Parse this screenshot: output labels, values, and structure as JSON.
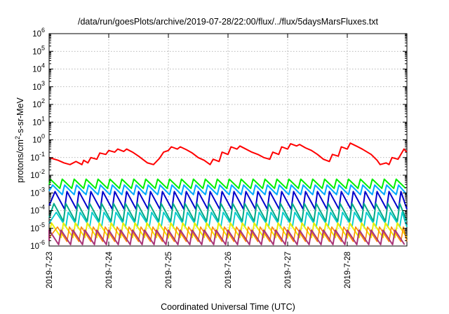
{
  "chart_data": {
    "type": "line",
    "title": "/data/run/goesPlots/archive/2019-07-28/22:00/flux/../flux/5daysMarsFluxes.txt",
    "xlabel": "Coordinated Universal Time (UTC)",
    "ylabel_main": "protons/cm",
    "ylabel_sup": "2",
    "ylabel_rest": "-s-sr-MeV",
    "yscale": "log",
    "ylim_exp": [
      -6,
      6
    ],
    "ytick_exponents": [
      "-6",
      "-5",
      "-4",
      "-3",
      "-2",
      "-1",
      "0",
      "1",
      "2",
      "3",
      "4",
      "5",
      "6"
    ],
    "ytick_base": "10",
    "xlim_days": [
      0,
      6
    ],
    "x_ticks": [
      "2019-7-23",
      "2019-7-24",
      "2019-7-25",
      "2019-7-26",
      "2019-7-27",
      "2019-7-28"
    ],
    "grid": true,
    "series": [
      {
        "color": "#ff0000",
        "width": 2,
        "x": [
          0.0,
          0.15,
          0.25,
          0.35,
          0.45,
          0.55,
          0.58,
          0.65,
          0.7,
          0.8,
          0.85,
          0.95,
          1.0,
          1.1,
          1.15,
          1.25,
          1.3,
          1.4,
          1.5,
          1.65,
          1.75,
          1.85,
          1.92,
          2.0,
          2.05,
          2.15,
          2.2,
          2.3,
          2.4,
          2.5,
          2.6,
          2.7,
          2.75,
          2.85,
          2.9,
          3.0,
          3.05,
          3.15,
          3.2,
          3.3,
          3.4,
          3.5,
          3.6,
          3.7,
          3.75,
          3.85,
          3.9,
          4.0,
          4.05,
          4.15,
          4.2,
          4.3,
          4.4,
          4.5,
          4.6,
          4.7,
          4.75,
          4.85,
          4.9,
          5.0,
          5.05,
          5.15,
          5.25,
          5.4,
          5.5,
          5.55,
          5.65,
          5.7,
          5.75,
          5.85,
          5.95,
          6.0
        ],
        "y": [
          0.1,
          0.07,
          0.05,
          0.04,
          0.06,
          0.04,
          0.07,
          0.05,
          0.1,
          0.08,
          0.18,
          0.15,
          0.25,
          0.2,
          0.3,
          0.22,
          0.3,
          0.2,
          0.12,
          0.05,
          0.04,
          0.09,
          0.2,
          0.25,
          0.4,
          0.3,
          0.4,
          0.28,
          0.18,
          0.1,
          0.07,
          0.04,
          0.08,
          0.06,
          0.2,
          0.15,
          0.4,
          0.3,
          0.45,
          0.3,
          0.2,
          0.15,
          0.1,
          0.08,
          0.2,
          0.15,
          0.4,
          0.3,
          0.6,
          0.45,
          0.55,
          0.35,
          0.25,
          0.15,
          0.08,
          0.06,
          0.15,
          0.12,
          0.4,
          0.3,
          0.65,
          0.45,
          0.3,
          0.15,
          0.07,
          0.04,
          0.05,
          0.04,
          0.1,
          0.08,
          0.3,
          0.2
        ]
      },
      {
        "color": "#00ee00",
        "width": 2,
        "top": 0.006,
        "bottom": 0.0018,
        "period": 0.2,
        "phase": 0.02
      },
      {
        "color": "#00aaff",
        "width": 2,
        "top": 0.0028,
        "bottom": 0.0008,
        "period": 0.2,
        "phase": 0.06
      },
      {
        "color": "#0000cc",
        "width": 2,
        "top": 0.0012,
        "bottom": 0.00012,
        "period": 0.2,
        "phase": 0.1
      },
      {
        "color": "#00aa88",
        "width": 2,
        "top": 0.00025,
        "bottom": 2.5e-05,
        "period": 0.2,
        "phase": 0.08
      },
      {
        "color": "#00cccc",
        "width": 1.8,
        "top": 8e-05,
        "bottom": 1.2e-05,
        "period": 0.2,
        "phase": 0.12
      },
      {
        "color": "#eeee00",
        "width": 2,
        "top": 2e-05,
        "bottom": 3e-06,
        "period": 0.2,
        "phase": 0.04
      },
      {
        "color": "#ff8800",
        "width": 1.6,
        "top": 1.2e-05,
        "bottom": 1.8e-06,
        "period": 0.2,
        "phase": 0.14
      },
      {
        "color": "#aa3377",
        "width": 2,
        "top": 8e-06,
        "bottom": 1.2e-06,
        "period": 0.2,
        "phase": 0.0
      }
    ]
  }
}
